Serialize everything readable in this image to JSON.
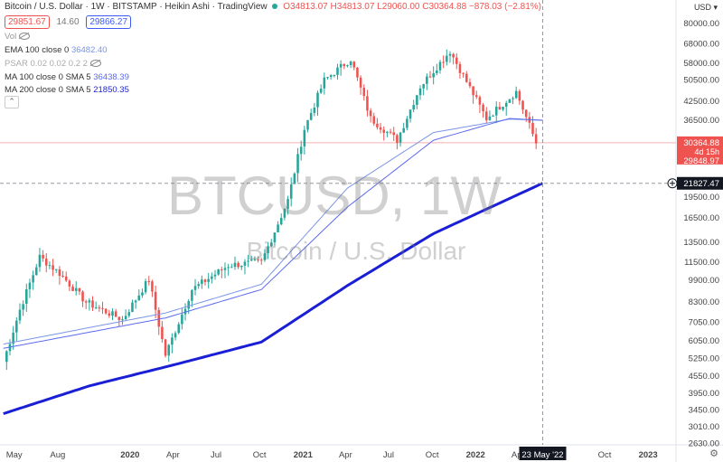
{
  "header": {
    "symbol": "Bitcoin / U.S. Dollar · 1W · BITSTAMP · Heikin Ashi · TradingView",
    "ohlc": "O34813.07 H34813.07 L29060.00 C30364.88 −878.03 (−2.81%)",
    "bid": "29851.67",
    "spread": "14.60",
    "ask": "29866.27",
    "currency": "USD"
  },
  "indicators": {
    "vol": "Vol",
    "ema": {
      "label": "EMA 100 close 0",
      "value": "36482.40"
    },
    "psar": {
      "label": "PSAR 0.02 0.02 0.2 2",
      "value": ""
    },
    "ma100": {
      "label": "MA 100 close 0 SMA 5",
      "value": "36438.39"
    },
    "ma200": {
      "label": "MA 200 close 0 SMA 5",
      "value": "21850.35"
    }
  },
  "watermark": {
    "ticker": "BTCUSD, 1W",
    "name": "Bitcoin / U.S. Dollar"
  },
  "colors": {
    "up": "#26a69a",
    "down": "#ef5350",
    "ma200": "#1a1fd6",
    "ma100": "#5b6bf0",
    "ema": "#7a95e6",
    "bid": "#ef5350",
    "ask": "#3f5bf5"
  },
  "chart_data": {
    "type": "candlestick",
    "scale": "log",
    "ylim": [
      2600,
      97000
    ],
    "y_ticks": [
      2630,
      3010,
      3450,
      3950,
      4550,
      5250,
      6050,
      7050,
      8300,
      9900,
      11500,
      13500,
      16500,
      19500,
      21827.47,
      36500,
      42500,
      50500,
      58000,
      68000,
      80000
    ],
    "y_tick_labels": [
      "2630.00",
      "3010.00",
      "3450.00",
      "3950.00",
      "4550.00",
      "5250.00",
      "6050.00",
      "7050.00",
      "8300.00",
      "9900.00",
      "11500.00",
      "13500.00",
      "16500.00",
      "19500.00",
      "",
      "36500.00",
      "42500.00",
      "50500.00",
      "58000.00",
      "68000.00",
      "80000.00"
    ],
    "x_ticks": [
      "May",
      "Aug",
      "2020",
      "Apr",
      "Jul",
      "Oct",
      "2021",
      "Apr",
      "Jul",
      "Oct",
      "2022",
      "Apr",
      "23 May '22",
      "Oct",
      "2023"
    ],
    "x_tick_dates": [
      "2019-05-01",
      "2019-08-01",
      "2020-01-01",
      "2020-04-01",
      "2020-07-01",
      "2020-10-01",
      "2021-01-01",
      "2021-04-01",
      "2021-07-01",
      "2021-10-01",
      "2022-01-01",
      "2022-04-01",
      "2022-05-23",
      "2022-10-01",
      "2023-01-01"
    ],
    "x_range": [
      "2019-04-01",
      "2023-03-01"
    ],
    "crosshair_date": "2022-05-23",
    "crosshair_price": 21827.47,
    "price_labels": [
      {
        "value": 30364.88,
        "text": "30364.88",
        "sub": "4d 15h"
      },
      {
        "value": 29848.97,
        "text": "29848.97"
      },
      {
        "value": 21827.47,
        "text": "21827.47"
      }
    ],
    "series_key_points": [
      {
        "date": "2019-04-08",
        "close": 5100
      },
      {
        "date": "2019-05-13",
        "close": 7800
      },
      {
        "date": "2019-06-24",
        "close": 12000
      },
      {
        "date": "2019-08-05",
        "close": 10500
      },
      {
        "date": "2019-09-30",
        "close": 8300
      },
      {
        "date": "2019-12-16",
        "close": 7200
      },
      {
        "date": "2020-02-10",
        "close": 10000
      },
      {
        "date": "2020-03-16",
        "close": 5400
      },
      {
        "date": "2020-05-11",
        "close": 9200
      },
      {
        "date": "2020-07-27",
        "close": 11200
      },
      {
        "date": "2020-10-05",
        "close": 11500
      },
      {
        "date": "2020-11-30",
        "close": 19000
      },
      {
        "date": "2021-01-04",
        "close": 34000
      },
      {
        "date": "2021-02-15",
        "close": 50500
      },
      {
        "date": "2021-04-12",
        "close": 60000
      },
      {
        "date": "2021-05-24",
        "close": 37000
      },
      {
        "date": "2021-07-19",
        "close": 31000
      },
      {
        "date": "2021-09-06",
        "close": 48000
      },
      {
        "date": "2021-11-08",
        "close": 64000
      },
      {
        "date": "2022-01-24",
        "close": 37000
      },
      {
        "date": "2022-03-28",
        "close": 46000
      },
      {
        "date": "2022-05-09",
        "close": 30364.88
      }
    ],
    "ma200_points": [
      {
        "date": "2019-04-08",
        "value": 3350
      },
      {
        "date": "2019-10-07",
        "value": 4200
      },
      {
        "date": "2020-04-06",
        "value": 5000
      },
      {
        "date": "2020-10-05",
        "value": 6000
      },
      {
        "date": "2021-04-05",
        "value": 9500
      },
      {
        "date": "2021-10-04",
        "value": 14500
      },
      {
        "date": "2022-05-23",
        "value": 21850.35
      }
    ],
    "ma100_points": [
      {
        "date": "2019-04-08",
        "value": 5700
      },
      {
        "date": "2020-03-16",
        "value": 7300
      },
      {
        "date": "2020-10-05",
        "value": 9200
      },
      {
        "date": "2021-04-05",
        "value": 18000
      },
      {
        "date": "2021-10-04",
        "value": 31000
      },
      {
        "date": "2022-03-14",
        "value": 37000
      },
      {
        "date": "2022-05-23",
        "value": 36438.39
      }
    ],
    "ema_points": [
      {
        "date": "2019-04-08",
        "value": 5900
      },
      {
        "date": "2020-03-16",
        "value": 7600
      },
      {
        "date": "2020-10-05",
        "value": 9600
      },
      {
        "date": "2021-04-05",
        "value": 21000
      },
      {
        "date": "2021-10-04",
        "value": 33000
      },
      {
        "date": "2022-03-14",
        "value": 36800
      },
      {
        "date": "2022-05-23",
        "value": 36482.4
      }
    ]
  }
}
